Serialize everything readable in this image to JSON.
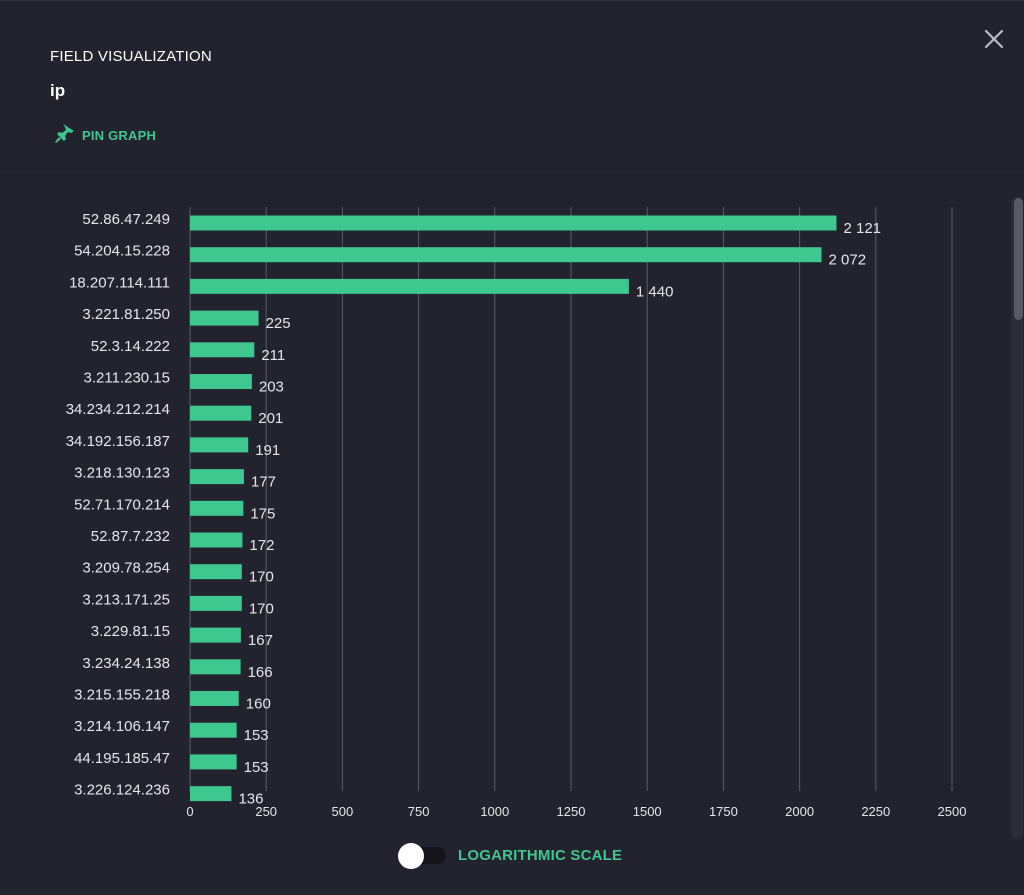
{
  "header": {
    "title": "FIELD VISUALIZATION",
    "field_name": "ip",
    "pin_label": "PIN GRAPH",
    "pin_icon": "pin-icon",
    "close_icon": "close-icon"
  },
  "colors": {
    "accent": "#3ec78f",
    "bar": "#3ec78f",
    "background": "#23232f",
    "grid": "#5a5a6a",
    "text": "#e6e6ea"
  },
  "chart_data": {
    "type": "bar",
    "orientation": "horizontal",
    "categories": [
      "52.86.47.249",
      "54.204.15.228",
      "18.207.114.111",
      "3.221.81.250",
      "52.3.14.222",
      "3.211.230.15",
      "34.234.212.214",
      "34.192.156.187",
      "3.218.130.123",
      "52.71.170.214",
      "52.87.7.232",
      "3.209.78.254",
      "3.213.171.25",
      "3.229.81.15",
      "3.234.24.138",
      "3.215.155.218",
      "3.214.106.147",
      "44.195.185.47",
      "3.226.124.236"
    ],
    "values": [
      2121,
      2072,
      1440,
      225,
      211,
      203,
      201,
      191,
      177,
      175,
      172,
      170,
      170,
      167,
      166,
      160,
      153,
      153,
      136
    ],
    "value_labels": [
      "2 121",
      "2 072",
      "1 440",
      "225",
      "211",
      "203",
      "201",
      "191",
      "177",
      "175",
      "172",
      "170",
      "170",
      "167",
      "166",
      "160",
      "153",
      "153",
      "136"
    ],
    "xticks": [
      "0",
      "250",
      "500",
      "750",
      "1000",
      "1250",
      "1500",
      "1750",
      "2000",
      "2250",
      "2500"
    ],
    "xlim": [
      0,
      2500
    ],
    "grid": true
  },
  "footer": {
    "toggle_label": "LOGARITHMIC SCALE",
    "toggle_on": false
  }
}
